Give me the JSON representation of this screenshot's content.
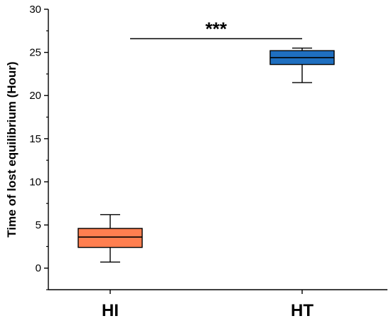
{
  "chart_data": {
    "type": "box",
    "ylabel": "Time of lost equilibrium (Hour)",
    "ylim": [
      -2.5,
      30
    ],
    "yticks": [
      0,
      5,
      10,
      15,
      20,
      25,
      30
    ],
    "categories": [
      "HI",
      "HT"
    ],
    "boxes": [
      {
        "category": "HI",
        "min": 0.7,
        "q1": 2.4,
        "median": 3.6,
        "q3": 4.6,
        "max": 6.2,
        "color": "#FF7F50"
      },
      {
        "category": "HT",
        "min": 21.5,
        "q1": 23.6,
        "median": 24.4,
        "q3": 25.2,
        "max": 25.5,
        "color": "#1F6FC0"
      }
    ],
    "significance": {
      "label": "***",
      "from": "HI",
      "to": "HT",
      "y": 27
    }
  }
}
